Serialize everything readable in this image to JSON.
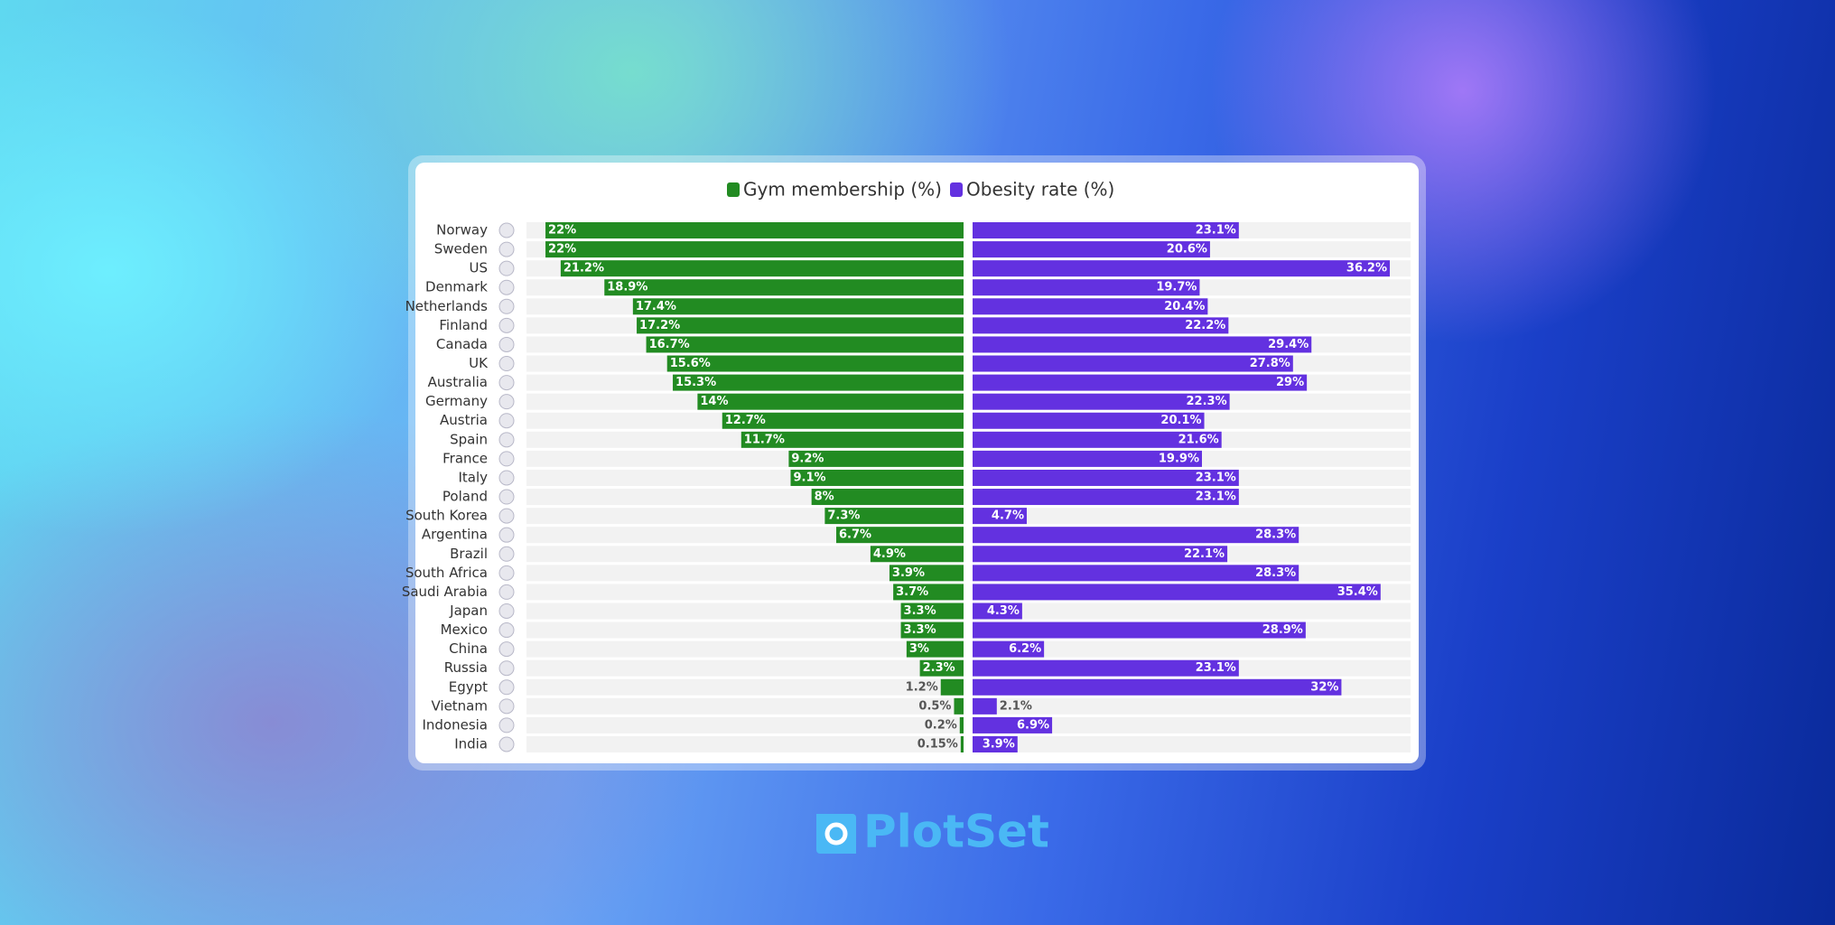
{
  "chart_data": {
    "type": "butterfly-bar",
    "categories": [
      "Norway",
      "Sweden",
      "US",
      "Denmark",
      "Netherlands",
      "Finland",
      "Canada",
      "UK",
      "Australia",
      "Germany",
      "Austria",
      "Spain",
      "France",
      "Italy",
      "Poland",
      "South Korea",
      "Argentina",
      "Brazil",
      "South Africa",
      "Saudi Arabia",
      "Japan",
      "Mexico",
      "China",
      "Russia",
      "Egypt",
      "Vietnam",
      "Indonesia",
      "India"
    ],
    "series": [
      {
        "name": "Gym membership (%)",
        "color": "#228b22",
        "xlim": [
          0,
          23
        ],
        "values": [
          22,
          22,
          21.2,
          18.9,
          17.4,
          17.2,
          16.7,
          15.6,
          15.3,
          14,
          12.7,
          11.7,
          9.2,
          9.1,
          8,
          7.3,
          6.7,
          4.9,
          3.9,
          3.7,
          3.3,
          3.3,
          3,
          2.3,
          1.2,
          0.5,
          0.2,
          0.15
        ],
        "value_labels": [
          "22%",
          "22%",
          "21.2%",
          "18.9%",
          "17.4%",
          "17.2%",
          "16.7%",
          "15.6%",
          "15.3%",
          "14%",
          "12.7%",
          "11.7%",
          "9.2%",
          "9.1%",
          "8%",
          "7.3%",
          "6.7%",
          "4.9%",
          "3.9%",
          "3.7%",
          "3.3%",
          "3.3%",
          "3%",
          "2.3%",
          "1.2%",
          "0.5%",
          "0.2%",
          "0.15%"
        ]
      },
      {
        "name": "Obesity rate (%)",
        "color": "#6331e0",
        "xlim": [
          0,
          38
        ],
        "values": [
          23.1,
          20.6,
          36.2,
          19.7,
          20.4,
          22.2,
          29.4,
          27.8,
          29,
          22.3,
          20.1,
          21.6,
          19.9,
          23.1,
          23.1,
          4.7,
          28.3,
          22.1,
          28.3,
          35.4,
          4.3,
          28.9,
          6.2,
          23.1,
          32,
          2.1,
          6.9,
          3.9
        ],
        "value_labels": [
          "23.1%",
          "20.6%",
          "36.2%",
          "19.7%",
          "20.4%",
          "22.2%",
          "29.4%",
          "27.8%",
          "29%",
          "22.3%",
          "20.1%",
          "21.6%",
          "19.9%",
          "23.1%",
          "23.1%",
          "4.7%",
          "28.3%",
          "22.1%",
          "28.3%",
          "35.4%",
          "4.3%",
          "28.9%",
          "6.2%",
          "23.1%",
          "32%",
          "2.1%",
          "6.9%",
          "3.9%"
        ]
      }
    ]
  },
  "brand": "PlotSet"
}
